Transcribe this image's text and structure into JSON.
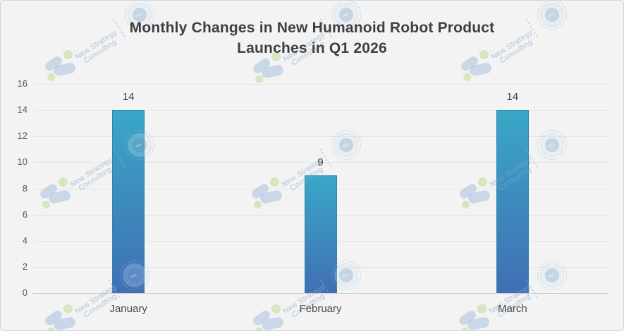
{
  "page": {
    "background": "#f3f3f3",
    "border_color": "#d6d6d6"
  },
  "chart_data": {
    "type": "bar",
    "title": "Monthly Changes in New Humanoid Robot Product Launches in Q1 2026",
    "title_lines": [
      "Monthly Changes in New Humanoid Robot Product",
      "Launches in Q1 2026"
    ],
    "categories": [
      "January",
      "February",
      "March"
    ],
    "values": [
      14,
      9,
      14
    ],
    "data_labels": [
      "14",
      "9",
      "14"
    ],
    "y_ticks": [
      0,
      2,
      4,
      6,
      8,
      10,
      12,
      14,
      16
    ],
    "ylim": [
      0,
      16
    ],
    "xlabel": "",
    "ylabel": "",
    "grid": true,
    "legend_position": "none",
    "bar_gradient_top": "#3aa7c7",
    "bar_gradient_bottom": "#3f6fb4",
    "bar_border": "#2c85ab",
    "gridline_color": "#e2e2e2",
    "baseline_color": "#c8c8c8",
    "tick_label_color": "#595959",
    "data_label_color": "#404040",
    "title_color": "#3f3f3f"
  },
  "watermark": {
    "brand_line1": "New Strategy",
    "brand_line2": "Consulting"
  }
}
